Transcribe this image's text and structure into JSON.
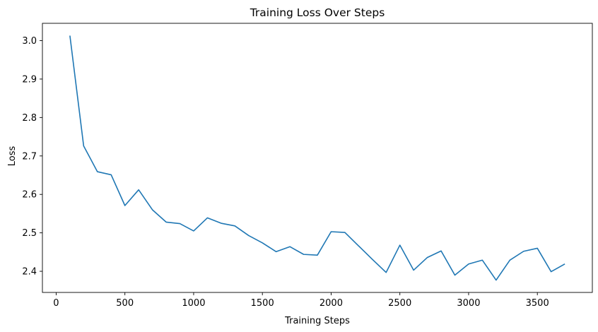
{
  "chart_data": {
    "type": "line",
    "title": "Training Loss Over Steps",
    "xlabel": "Training Steps",
    "ylabel": "Loss",
    "xlim": [
      -100,
      3900
    ],
    "ylim": [
      2.345,
      3.045
    ],
    "xticks": [
      0,
      500,
      1000,
      1500,
      2000,
      2500,
      3000,
      3500
    ],
    "yticks": [
      2.4,
      2.5,
      2.6,
      2.7,
      2.8,
      2.9,
      3.0
    ],
    "grid": false,
    "line_color": "#1f77b4",
    "series": [
      {
        "x": [
          100,
          200,
          300,
          400,
          500,
          600,
          700,
          800,
          900,
          1000,
          1100,
          1200,
          1300,
          1400,
          1500,
          1600,
          1700,
          1800,
          1900,
          2000,
          2100,
          2200,
          2300,
          2400,
          2500,
          2600,
          2700,
          2800,
          2900,
          3000,
          3100,
          3200,
          3300,
          3400,
          3500,
          3600,
          3700
        ],
        "y": [
          3.013,
          2.726,
          2.659,
          2.651,
          2.571,
          2.612,
          2.56,
          2.528,
          2.524,
          2.505,
          2.539,
          2.525,
          2.518,
          2.493,
          2.474,
          2.451,
          2.464,
          2.444,
          2.442,
          2.503,
          2.501,
          2.466,
          2.431,
          2.397,
          2.468,
          2.403,
          2.436,
          2.453,
          2.39,
          2.419,
          2.429,
          2.377,
          2.429,
          2.452,
          2.46,
          2.399,
          2.419
        ]
      }
    ]
  }
}
